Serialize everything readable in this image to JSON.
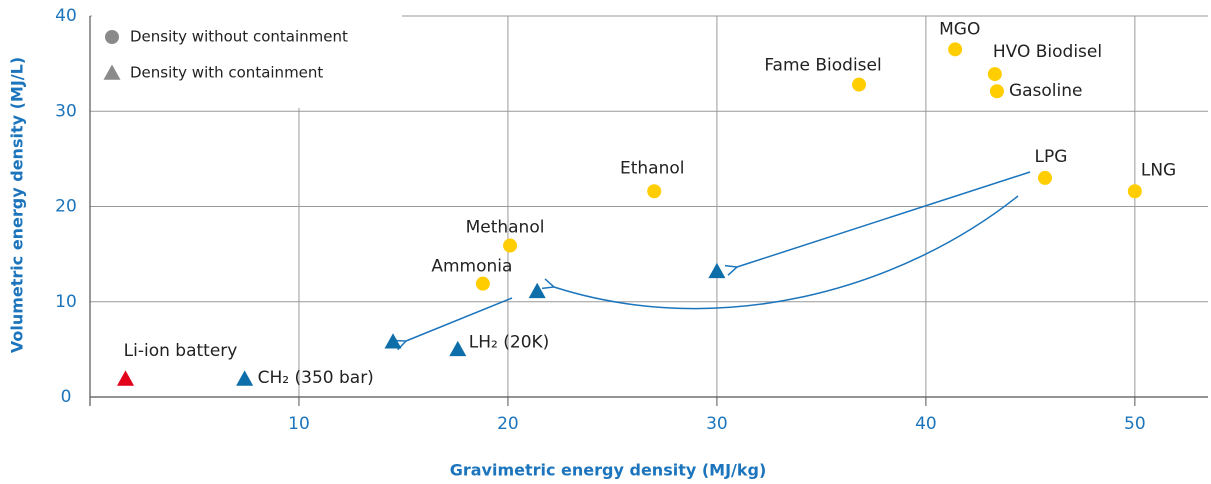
{
  "chart_data": {
    "type": "scatter",
    "xlabel": "Gravimetric energy density (MJ/kg)",
    "ylabel": "Volumetric energy density (MJ/L)",
    "xlim": [
      0,
      53.5
    ],
    "xticks": [
      10,
      20,
      30,
      40,
      50
    ],
    "ylim": [
      0,
      40
    ],
    "yticks": [
      0,
      10,
      20,
      30,
      40
    ],
    "grid": true,
    "legend": "upper left",
    "legend_color": "#8a8a8a",
    "series": [
      {
        "name": "Density without containment",
        "marker": "circle",
        "color": "#ffcd00",
        "x": [
          41.4,
          43.3,
          43.4,
          36.8,
          27,
          45.7,
          50,
          20.1,
          18.8
        ],
        "values": [
          36.5,
          33.9,
          32.1,
          32.8,
          21.6,
          23,
          21.6,
          15.9,
          11.9
        ],
        "labels": [
          "MGO",
          "HVO Biodisel",
          "Gasoline",
          "Fame Biodisel",
          "Ethanol",
          "LPG",
          "LNG",
          "Methanol",
          "Ammonia"
        ]
      },
      {
        "name": "Density with containment",
        "marker": "triangle",
        "color": "#0e6ea9",
        "colors": [
          "#0e6ea9",
          "#0e6ea9",
          "#0e6ea9",
          "#0e6ea9",
          "#0e6ea9",
          "#e3001b"
        ],
        "x": [
          30,
          21.4,
          14.5,
          17.6,
          7.4,
          1.7
        ],
        "values": [
          13.2,
          11.1,
          5.8,
          5,
          1.9,
          1.9
        ],
        "labels": [
          null,
          null,
          null,
          "LH₂ (20K)",
          "CH₂ (350 bar)",
          "Li-ion battery"
        ]
      }
    ]
  }
}
